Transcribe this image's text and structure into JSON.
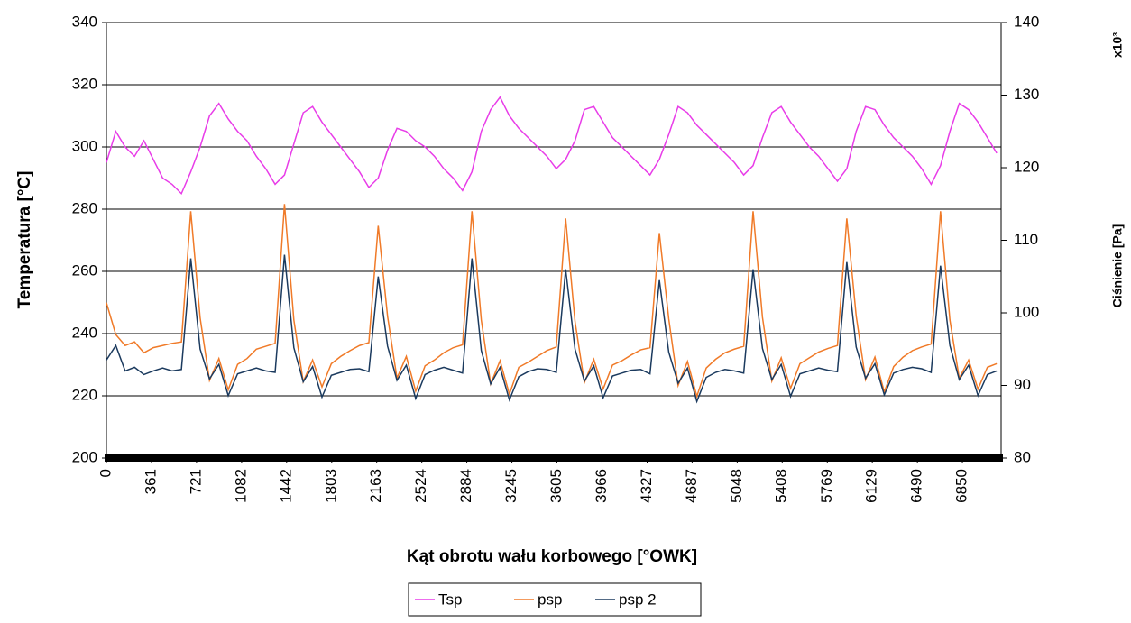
{
  "chart_data": {
    "type": "line",
    "x_label": "Kąt obrotu wału korbowego [°OWK]",
    "y_label": "Temperatura [°C]",
    "y2_label": "Ciśnienie [Pa]",
    "y2_multiplier": "x10³",
    "xlim": [
      0,
      7160
    ],
    "xticks": [
      0,
      361,
      721,
      1082,
      1442,
      1803,
      2163,
      2524,
      2884,
      3245,
      3605,
      3966,
      4327,
      4687,
      5048,
      5408,
      5769,
      6129,
      6490,
      6850
    ],
    "ylim": [
      200,
      340
    ],
    "yticks": [
      200,
      220,
      240,
      260,
      280,
      300,
      320,
      340
    ],
    "y2lim": [
      80,
      140
    ],
    "y2ticks": [
      80,
      90,
      100,
      110,
      120,
      130,
      140
    ],
    "grid": true,
    "legend": "bottom",
    "x": [
      0,
      75,
      150,
      225,
      300,
      375,
      450,
      525,
      600,
      675,
      750,
      825,
      900,
      975,
      1050,
      1125,
      1200,
      1275,
      1350,
      1425,
      1500,
      1575,
      1650,
      1725,
      1800,
      1875,
      1950,
      2025,
      2100,
      2175,
      2250,
      2325,
      2400,
      2475,
      2550,
      2625,
      2700,
      2775,
      2850,
      2925,
      3000,
      3075,
      3150,
      3225,
      3300,
      3375,
      3450,
      3525,
      3600,
      3675,
      3750,
      3825,
      3900,
      3975,
      4050,
      4125,
      4200,
      4275,
      4350,
      4425,
      4500,
      4575,
      4650,
      4725,
      4800,
      4875,
      4950,
      5025,
      5100,
      5175,
      5250,
      5325,
      5400,
      5475,
      5550,
      5625,
      5700,
      5775,
      5850,
      5925,
      6000,
      6075,
      6150,
      6225,
      6300,
      6375,
      6450,
      6525,
      6600,
      6675,
      6750,
      6825,
      6900,
      6975,
      7050,
      7125
    ],
    "series": [
      {
        "name": "Tsp",
        "color": "#e83ce8",
        "values": [
          295,
          305,
          300,
          297,
          302,
          296,
          290,
          288,
          285,
          292,
          300,
          310,
          314,
          309,
          305,
          302,
          297,
          293,
          288,
          291,
          301,
          311,
          313,
          308,
          304,
          300,
          296,
          292,
          287,
          290,
          299,
          306,
          305,
          302,
          300,
          297,
          293,
          290,
          286,
          292,
          305,
          312,
          316,
          310,
          306,
          303,
          300,
          297,
          293,
          296,
          302,
          312,
          313,
          308,
          303,
          300,
          297,
          294,
          291,
          296,
          304,
          313,
          311,
          307,
          304,
          301,
          298,
          295,
          291,
          294,
          303,
          311,
          313,
          308,
          304,
          300,
          297,
          293,
          289,
          293,
          305,
          313,
          312,
          307,
          303,
          300,
          297,
          293,
          288,
          294,
          305,
          314,
          312,
          308,
          303,
          298
        ]
      },
      {
        "name": "psp",
        "color": "#f07a28",
        "axis": "y2",
        "values": [
          101.4,
          97,
          95.5,
          96,
          94.5,
          95.2,
          95.5,
          95.8,
          96,
          114,
          99.3,
          90.7,
          93.7,
          89.4,
          92.9,
          93.7,
          95,
          95.4,
          95.8,
          115,
          99,
          90.5,
          93.5,
          89.8,
          93,
          94,
          94.8,
          95.5,
          95.9,
          112,
          99.5,
          91,
          94,
          89.2,
          92.7,
          93.5,
          94.5,
          95.2,
          95.6,
          114,
          99,
          90.2,
          93.4,
          88.8,
          92.5,
          93.2,
          94,
          94.8,
          95.3,
          113,
          98.8,
          90.4,
          93.6,
          89.5,
          92.8,
          93.4,
          94.2,
          94.9,
          95.2,
          111,
          99.2,
          90,
          93.3,
          88.5,
          92.4,
          93.6,
          94.5,
          95,
          95.4,
          114,
          99.4,
          90.6,
          93.8,
          89.6,
          93,
          93.8,
          94.6,
          95.1,
          95.5,
          113,
          99.6,
          90.8,
          93.9,
          89.1,
          92.6,
          93.9,
          94.8,
          95.3,
          95.7,
          114,
          99,
          91,
          93.5,
          89.5,
          92.5,
          93
        ]
      },
      {
        "name": "psp 2",
        "color": "#1b3a5e",
        "axis": "y2",
        "values": [
          93.5,
          95.5,
          92,
          92.5,
          91.5,
          92,
          92.4,
          92,
          92.2,
          107.5,
          95,
          90.9,
          92.9,
          88.6,
          91.6,
          92,
          92.4,
          92,
          91.8,
          108,
          95.2,
          90.5,
          92.6,
          88.4,
          91.4,
          91.8,
          92.2,
          92.3,
          91.9,
          105,
          95.4,
          90.7,
          92.8,
          88.2,
          91.5,
          92.1,
          92.5,
          92.1,
          91.7,
          107.5,
          94.8,
          90.2,
          92.5,
          88,
          91.2,
          91.9,
          92.3,
          92.2,
          91.8,
          106,
          95,
          90.6,
          92.7,
          88.3,
          91.3,
          91.7,
          92.1,
          92.2,
          91.6,
          104.5,
          94.6,
          90.3,
          92.4,
          87.8,
          91.1,
          91.8,
          92.2,
          92,
          91.7,
          106,
          95.1,
          90.8,
          92.9,
          88.5,
          91.6,
          92,
          92.4,
          92.1,
          91.9,
          107,
          95.3,
          91,
          93,
          88.7,
          91.7,
          92.2,
          92.5,
          92.3,
          91.8,
          106.5,
          95.5,
          90.8,
          92.8,
          88.6,
          91.5,
          92
        ]
      }
    ]
  }
}
